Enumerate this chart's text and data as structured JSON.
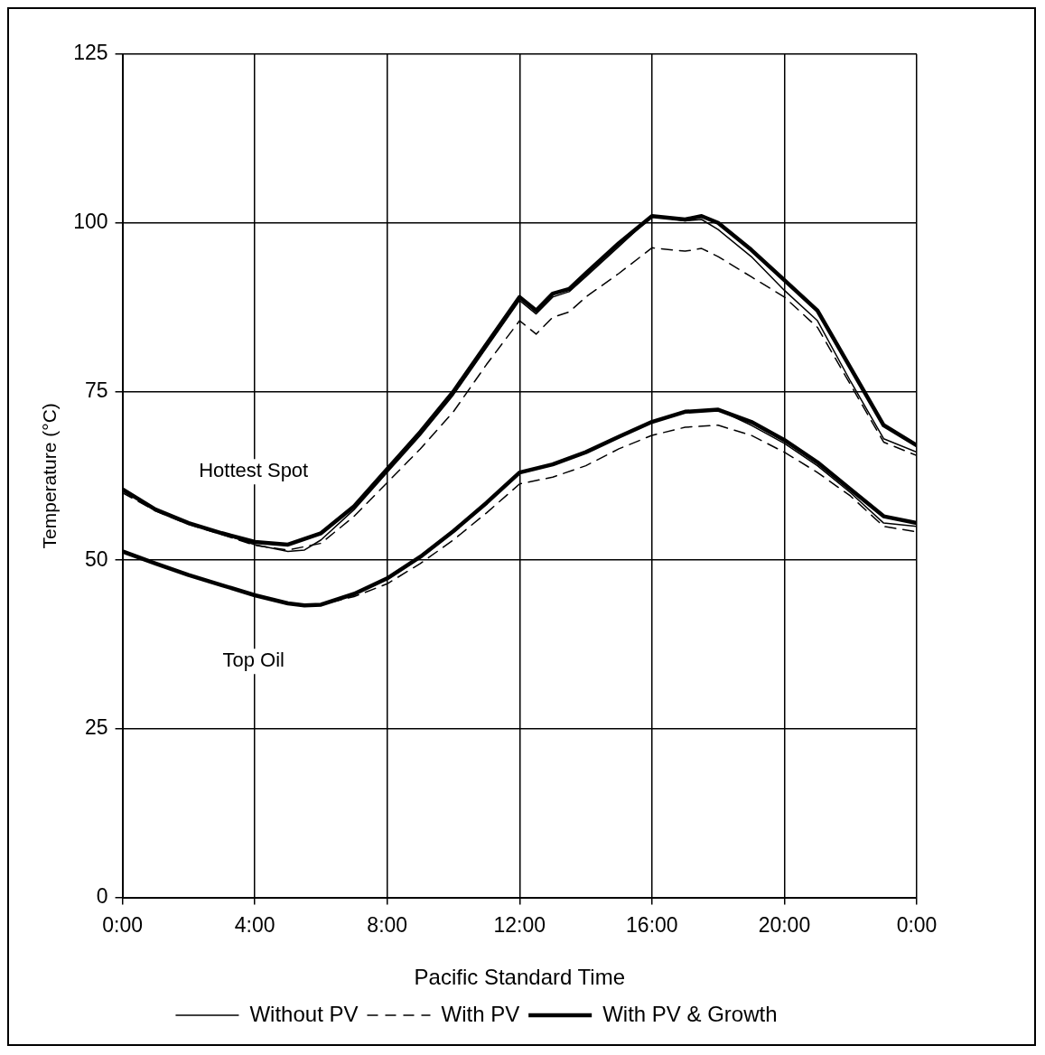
{
  "chart_data": {
    "type": "line",
    "xlabel": "Pacific Standard Time",
    "ylabel": "Temperature (°C)",
    "xlim": [
      0,
      24
    ],
    "xticks": [
      {
        "value": 0,
        "label": "0:00"
      },
      {
        "value": 4,
        "label": "4:00"
      },
      {
        "value": 8,
        "label": "8:00"
      },
      {
        "value": 12,
        "label": "12:00"
      },
      {
        "value": 16,
        "label": "16:00"
      },
      {
        "value": 20,
        "label": "20:00"
      },
      {
        "value": 24,
        "label": "0:00"
      }
    ],
    "ylim": [
      0,
      125
    ],
    "yticks": [
      0,
      25,
      50,
      75,
      100,
      125
    ],
    "grid": true,
    "legend": "bottom",
    "marker": "none",
    "annotations": [
      "Hottest Spot",
      "Top Oil"
    ],
    "series": [
      {
        "name": "Without PV",
        "color": "#000000",
        "line_style": "solid",
        "x": [
          0,
          1,
          2,
          3,
          4,
          5,
          5.5,
          6,
          7,
          8,
          9,
          10,
          11,
          12,
          12.5,
          13,
          13.5,
          14,
          15,
          16,
          17,
          17.5,
          18,
          19,
          20,
          21,
          22,
          23,
          24
        ],
        "values": [
          60.3,
          57.4,
          55.4,
          53.9,
          52.3,
          51.3,
          51.5,
          53,
          57.5,
          63,
          68.5,
          74.5,
          81.5,
          88.5,
          86.5,
          89,
          89.8,
          92,
          96.5,
          101,
          100.3,
          100.5,
          99,
          95,
          90,
          85.5,
          76.5,
          68,
          66
        ]
      },
      {
        "name": "With PV",
        "color": "#000000",
        "line_style": "dashed",
        "x": [
          0,
          1,
          2,
          3,
          4,
          5,
          6,
          7,
          8,
          9,
          10,
          11,
          12,
          12.5,
          13,
          13.5,
          14,
          15,
          16,
          17,
          17.5,
          18,
          19,
          20,
          21,
          22,
          23,
          24
        ],
        "values": [
          60,
          57.3,
          55.3,
          53.8,
          52.2,
          51.5,
          52.5,
          56.5,
          61.5,
          66.5,
          72,
          79,
          85.5,
          83.5,
          86,
          86.8,
          89,
          92.5,
          96.3,
          95.8,
          96.2,
          95,
          92,
          89,
          84.5,
          76,
          67.5,
          65.5
        ]
      },
      {
        "name": "With PV & Growth",
        "color": "#000000",
        "line_style": "solid",
        "x": [
          0,
          1,
          2,
          3,
          4,
          5,
          6,
          7,
          8,
          9,
          10,
          11,
          12,
          12.5,
          13,
          13.5,
          14,
          15,
          16,
          17,
          17.5,
          18,
          19,
          20,
          21,
          22,
          23,
          24
        ],
        "values": [
          60.5,
          57.5,
          55.5,
          54,
          52.7,
          52.3,
          54,
          58,
          63.5,
          69,
          75,
          82,
          89,
          87,
          89.5,
          90.2,
          92.5,
          97,
          101,
          100.5,
          101,
          100,
          96,
          91.5,
          87,
          78.5,
          70,
          67
        ]
      },
      {
        "color": "#000000",
        "line_style": "solid",
        "x": [
          0,
          1,
          2,
          3,
          4,
          5,
          5.5,
          6,
          7,
          8,
          9,
          10,
          11,
          12,
          13,
          14,
          15,
          16,
          17,
          18,
          19,
          20,
          21,
          22,
          23,
          24
        ],
        "values": [
          51.3,
          49.5,
          47.8,
          46.3,
          44.8,
          43.6,
          43.3,
          43.4,
          45,
          47.3,
          50.5,
          54.3,
          58.5,
          63,
          64.2,
          66,
          68.3,
          70.5,
          72,
          72.3,
          70,
          67.3,
          64,
          60,
          55.5,
          55
        ]
      },
      {
        "color": "#000000",
        "line_style": "dashed",
        "x": [
          0,
          1,
          2,
          3,
          4,
          5,
          5.5,
          6,
          7,
          8,
          9,
          10,
          11,
          12,
          13,
          14,
          15,
          16,
          17,
          18,
          19,
          20,
          21,
          22,
          23,
          24
        ],
        "values": [
          51.3,
          49.5,
          47.8,
          46.3,
          44.8,
          43.6,
          43.3,
          43.4,
          44.6,
          46.5,
          49.5,
          53,
          57,
          61.3,
          62.3,
          64,
          66.5,
          68.5,
          69.7,
          70,
          68.5,
          66,
          63,
          59.5,
          55,
          54.2
        ]
      },
      {
        "color": "#000000",
        "line_style": "solid",
        "x": [
          0,
          1,
          2,
          3,
          4,
          5,
          5.5,
          6,
          7,
          8,
          9,
          10,
          11,
          12,
          13,
          14,
          15,
          16,
          17,
          18,
          19,
          20,
          21,
          22,
          23,
          24
        ],
        "values": [
          51.3,
          49.5,
          47.8,
          46.3,
          44.8,
          43.6,
          43.3,
          43.4,
          45,
          47.3,
          50.5,
          54.3,
          58.5,
          63,
          64.2,
          66,
          68.3,
          70.5,
          72,
          72.3,
          70.5,
          67.8,
          64.5,
          60.5,
          56.5,
          55.5
        ]
      }
    ]
  }
}
